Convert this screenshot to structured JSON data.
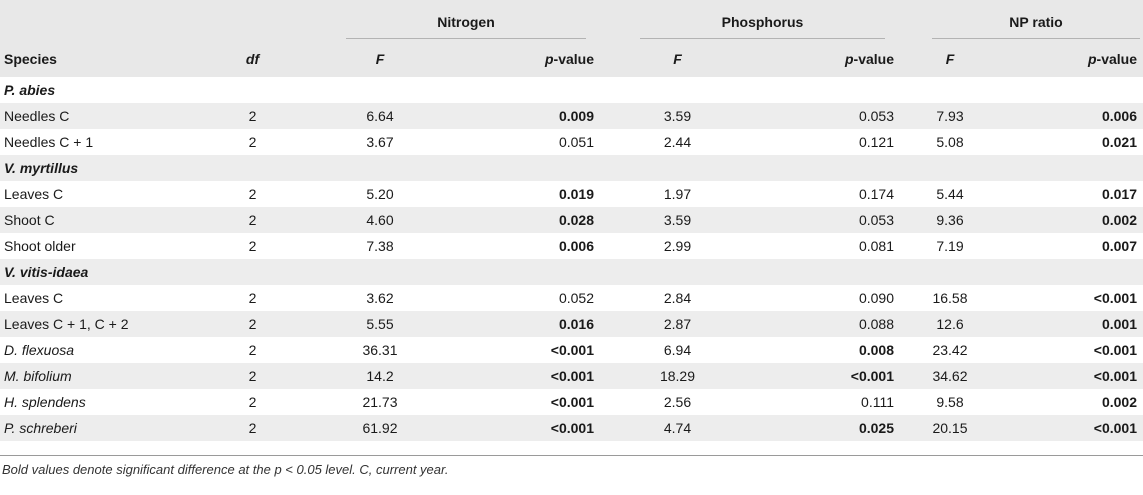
{
  "groups": [
    {
      "label": "Nitrogen"
    },
    {
      "label": "Phosphorus"
    },
    {
      "label": "NP ratio"
    }
  ],
  "columns": {
    "species": "Species",
    "df": "df",
    "f": "F",
    "p_pre": "p",
    "p_post": "-value"
  },
  "rows": [
    {
      "type": "section",
      "species": "P. abies"
    },
    {
      "type": "data",
      "species": "Needles C",
      "italic": false,
      "df": "2",
      "n_f": "6.64",
      "n_p": "0.009",
      "n_sig": true,
      "p_f": "3.59",
      "p_p": "0.053",
      "p_sig": false,
      "r_f": "7.93",
      "r_p": "0.006",
      "r_sig": true
    },
    {
      "type": "data",
      "species": "Needles C + 1",
      "italic": false,
      "df": "2",
      "n_f": "3.67",
      "n_p": "0.051",
      "n_sig": false,
      "p_f": "2.44",
      "p_p": "0.121",
      "p_sig": false,
      "r_f": "5.08",
      "r_p": "0.021",
      "r_sig": true
    },
    {
      "type": "section",
      "species": "V. myrtillus"
    },
    {
      "type": "data",
      "species": "Leaves C",
      "italic": false,
      "df": "2",
      "n_f": "5.20",
      "n_p": "0.019",
      "n_sig": true,
      "p_f": "1.97",
      "p_p": "0.174",
      "p_sig": false,
      "r_f": "5.44",
      "r_p": "0.017",
      "r_sig": true
    },
    {
      "type": "data",
      "species": "Shoot C",
      "italic": false,
      "df": "2",
      "n_f": "4.60",
      "n_p": "0.028",
      "n_sig": true,
      "p_f": "3.59",
      "p_p": "0.053",
      "p_sig": false,
      "r_f": "9.36",
      "r_p": "0.002",
      "r_sig": true
    },
    {
      "type": "data",
      "species": "Shoot older",
      "italic": false,
      "df": "2",
      "n_f": "7.38",
      "n_p": "0.006",
      "n_sig": true,
      "p_f": "2.99",
      "p_p": "0.081",
      "p_sig": false,
      "r_f": "7.19",
      "r_p": "0.007",
      "r_sig": true
    },
    {
      "type": "section",
      "species": "V. vitis-idaea"
    },
    {
      "type": "data",
      "species": "Leaves C",
      "italic": false,
      "df": "2",
      "n_f": "3.62",
      "n_p": "0.052",
      "n_sig": false,
      "p_f": "2.84",
      "p_p": "0.090",
      "p_sig": false,
      "r_f": "16.58",
      "r_p": "<0.001",
      "r_sig": true
    },
    {
      "type": "data",
      "species": "Leaves C + 1, C + 2",
      "italic": false,
      "df": "2",
      "n_f": "5.55",
      "n_p": "0.016",
      "n_sig": true,
      "p_f": "2.87",
      "p_p": "0.088",
      "p_sig": false,
      "r_f": "12.6",
      "r_p": "0.001",
      "r_sig": true
    },
    {
      "type": "data",
      "species": "D. flexuosa",
      "italic": true,
      "df": "2",
      "n_f": "36.31",
      "n_p": "<0.001",
      "n_sig": true,
      "p_f": "6.94",
      "p_p": "0.008",
      "p_sig": true,
      "r_f": "23.42",
      "r_p": "<0.001",
      "r_sig": true
    },
    {
      "type": "data",
      "species": "M. bifolium",
      "italic": true,
      "df": "2",
      "n_f": "14.2",
      "n_p": "<0.001",
      "n_sig": true,
      "p_f": "18.29",
      "p_p": "<0.001",
      "p_sig": true,
      "r_f": "34.62",
      "r_p": "<0.001",
      "r_sig": true
    },
    {
      "type": "data",
      "species": "H. splendens",
      "italic": true,
      "df": "2",
      "n_f": "21.73",
      "n_p": "<0.001",
      "n_sig": true,
      "p_f": "2.56",
      "p_p": "0.111",
      "p_sig": false,
      "r_f": "9.58",
      "r_p": "0.002",
      "r_sig": true
    },
    {
      "type": "data",
      "species": "P. schreberi",
      "italic": true,
      "df": "2",
      "n_f": "61.92",
      "n_p": "<0.001",
      "n_sig": true,
      "p_f": "4.74",
      "p_p": "0.025",
      "p_sig": true,
      "r_f": "20.15",
      "r_p": "<0.001",
      "r_sig": true
    }
  ],
  "footnote": "Bold values denote significant difference at the p < 0.05 level. C, current year."
}
